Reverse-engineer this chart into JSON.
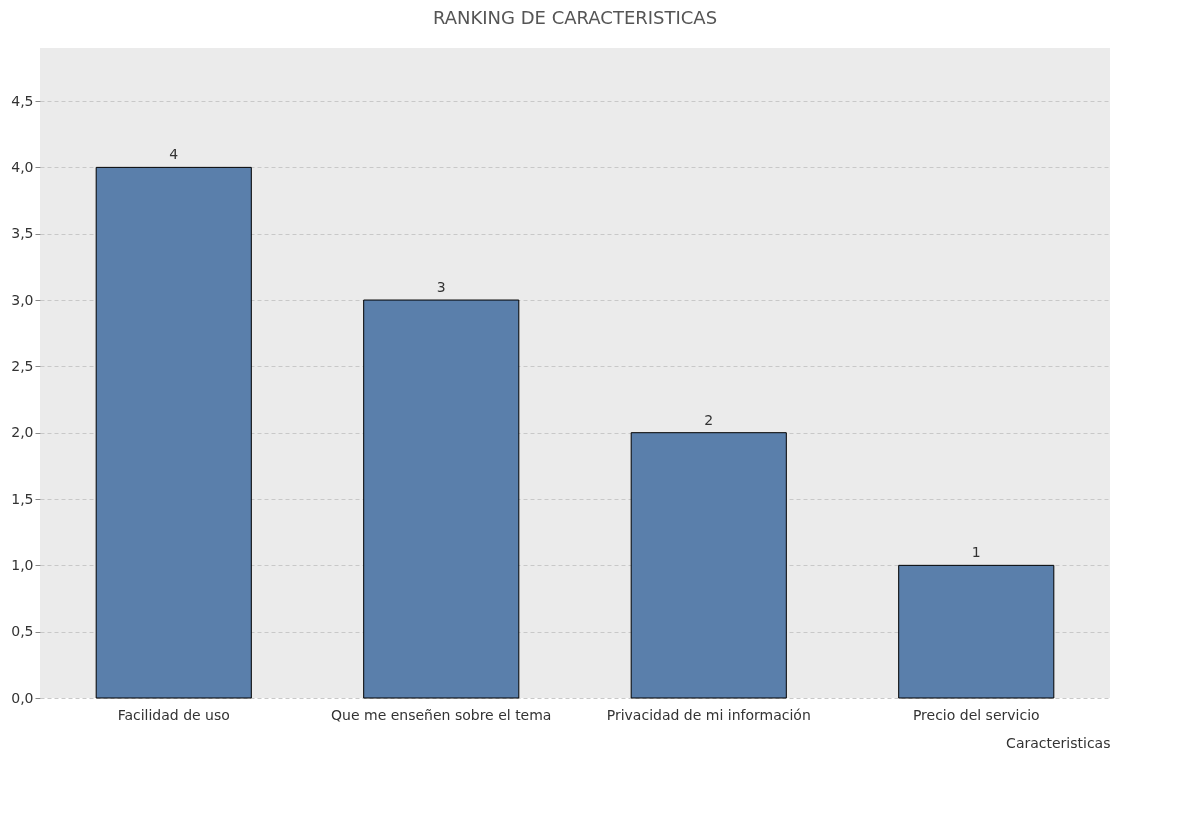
{
  "chart_data": {
    "type": "bar",
    "title": "RANKING DE CARACTERISTICAS",
    "xlabel": "Caracteristicas",
    "categories": [
      "Facilidad de uso",
      "Que me enseñen sobre el tema",
      "Privacidad de mi información",
      "Precio del servicio"
    ],
    "values": [
      4,
      3,
      2,
      1
    ],
    "color": "#5a7fab",
    "data_labels": true,
    "grid": "y",
    "ylim": [
      0,
      4.9
    ],
    "yticks": [
      {
        "value": 0,
        "label": "0,0"
      },
      {
        "value": 0.5,
        "label": "0,5"
      },
      {
        "value": 1,
        "label": "1,0"
      },
      {
        "value": 1.5,
        "label": "1,5"
      },
      {
        "value": 2,
        "label": "2,0"
      },
      {
        "value": 2.5,
        "label": "2,5"
      },
      {
        "value": 3,
        "label": "3,0"
      },
      {
        "value": 3.5,
        "label": "3,5"
      },
      {
        "value": 4,
        "label": "4,0"
      },
      {
        "value": 4.5,
        "label": "4,5"
      }
    ]
  }
}
